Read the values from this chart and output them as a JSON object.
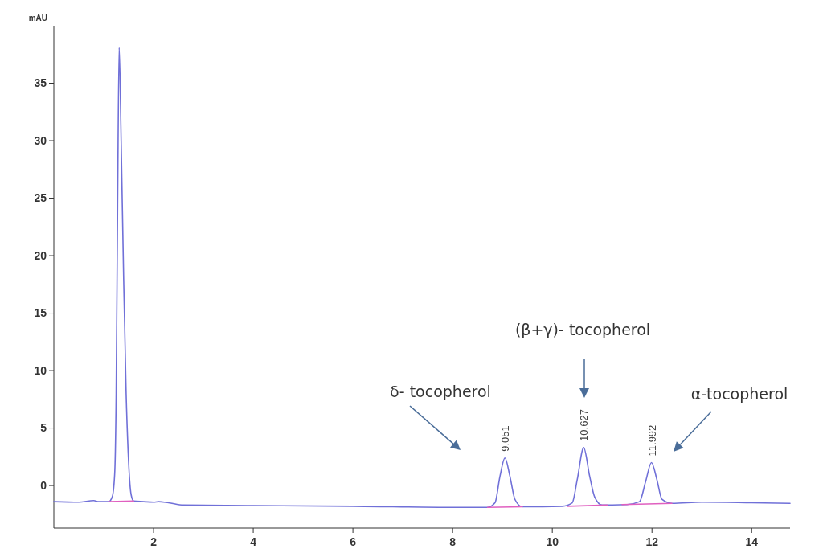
{
  "chart_data": {
    "type": "line",
    "ylabel": "mAU",
    "xlim": [
      0,
      14.77
    ],
    "ylim": [
      -3.7,
      40
    ],
    "xticks": [
      2,
      4,
      6,
      8,
      10,
      12,
      14
    ],
    "yticks": [
      0,
      5,
      10,
      15,
      20,
      25,
      30,
      35
    ],
    "grid": false,
    "series": [
      {
        "color": "#7070d8",
        "x": [
          0,
          0.5,
          0.8,
          0.9,
          1.1,
          1.17,
          1.22,
          1.25,
          1.28,
          1.31,
          1.35,
          1.4,
          1.45,
          1.5,
          1.55,
          1.6,
          1.8,
          2.0,
          2.1,
          2.3,
          2.6,
          4,
          6,
          8,
          8.7,
          8.85,
          8.95,
          9.05,
          9.15,
          9.25,
          9.4,
          10.2,
          10.4,
          10.5,
          10.63,
          10.75,
          10.85,
          11.0,
          11.5,
          11.75,
          11.87,
          11.99,
          12.1,
          12.2,
          12.4,
          13,
          14,
          14.77
        ],
        "values": [
          -1.4,
          -1.45,
          -1.3,
          -1.4,
          -1.4,
          -1.0,
          1,
          8,
          25,
          38.1,
          30,
          18,
          8,
          2,
          -0.8,
          -1.35,
          -1.4,
          -1.45,
          -1.4,
          -1.5,
          -1.7,
          -1.75,
          -1.8,
          -1.9,
          -1.9,
          -1.5,
          0.8,
          2.4,
          0.8,
          -1.2,
          -1.85,
          -1.8,
          -1.5,
          0.5,
          3.3,
          0.8,
          -1.0,
          -1.7,
          -1.65,
          -1.4,
          0.3,
          2.0,
          0.5,
          -1.2,
          -1.55,
          -1.45,
          -1.5,
          -1.55
        ]
      },
      {
        "color": "#e060c0",
        "x": [
          1.1,
          1.6
        ],
        "values": [
          -1.4,
          -1.35
        ]
      },
      {
        "color": "#e060c0",
        "x": [
          8.7,
          9.4
        ],
        "values": [
          -1.9,
          -1.85
        ]
      },
      {
        "color": "#e060c0",
        "x": [
          10.3,
          11.1
        ],
        "values": [
          -1.8,
          -1.7
        ]
      },
      {
        "color": "#e060c0",
        "x": [
          11.4,
          12.4
        ],
        "values": [
          -1.65,
          -1.55
        ]
      }
    ],
    "annotations": [
      {
        "text": "9.051",
        "x": 9.05,
        "y": 2.4
      },
      {
        "text": "10.627",
        "x": 10.63,
        "y": 3.3
      },
      {
        "text": "11.992",
        "x": 11.99,
        "y": 2.0
      },
      "δ- tocopherol",
      "(β+γ)- tocopherol",
      "α-tocopherol"
    ]
  }
}
